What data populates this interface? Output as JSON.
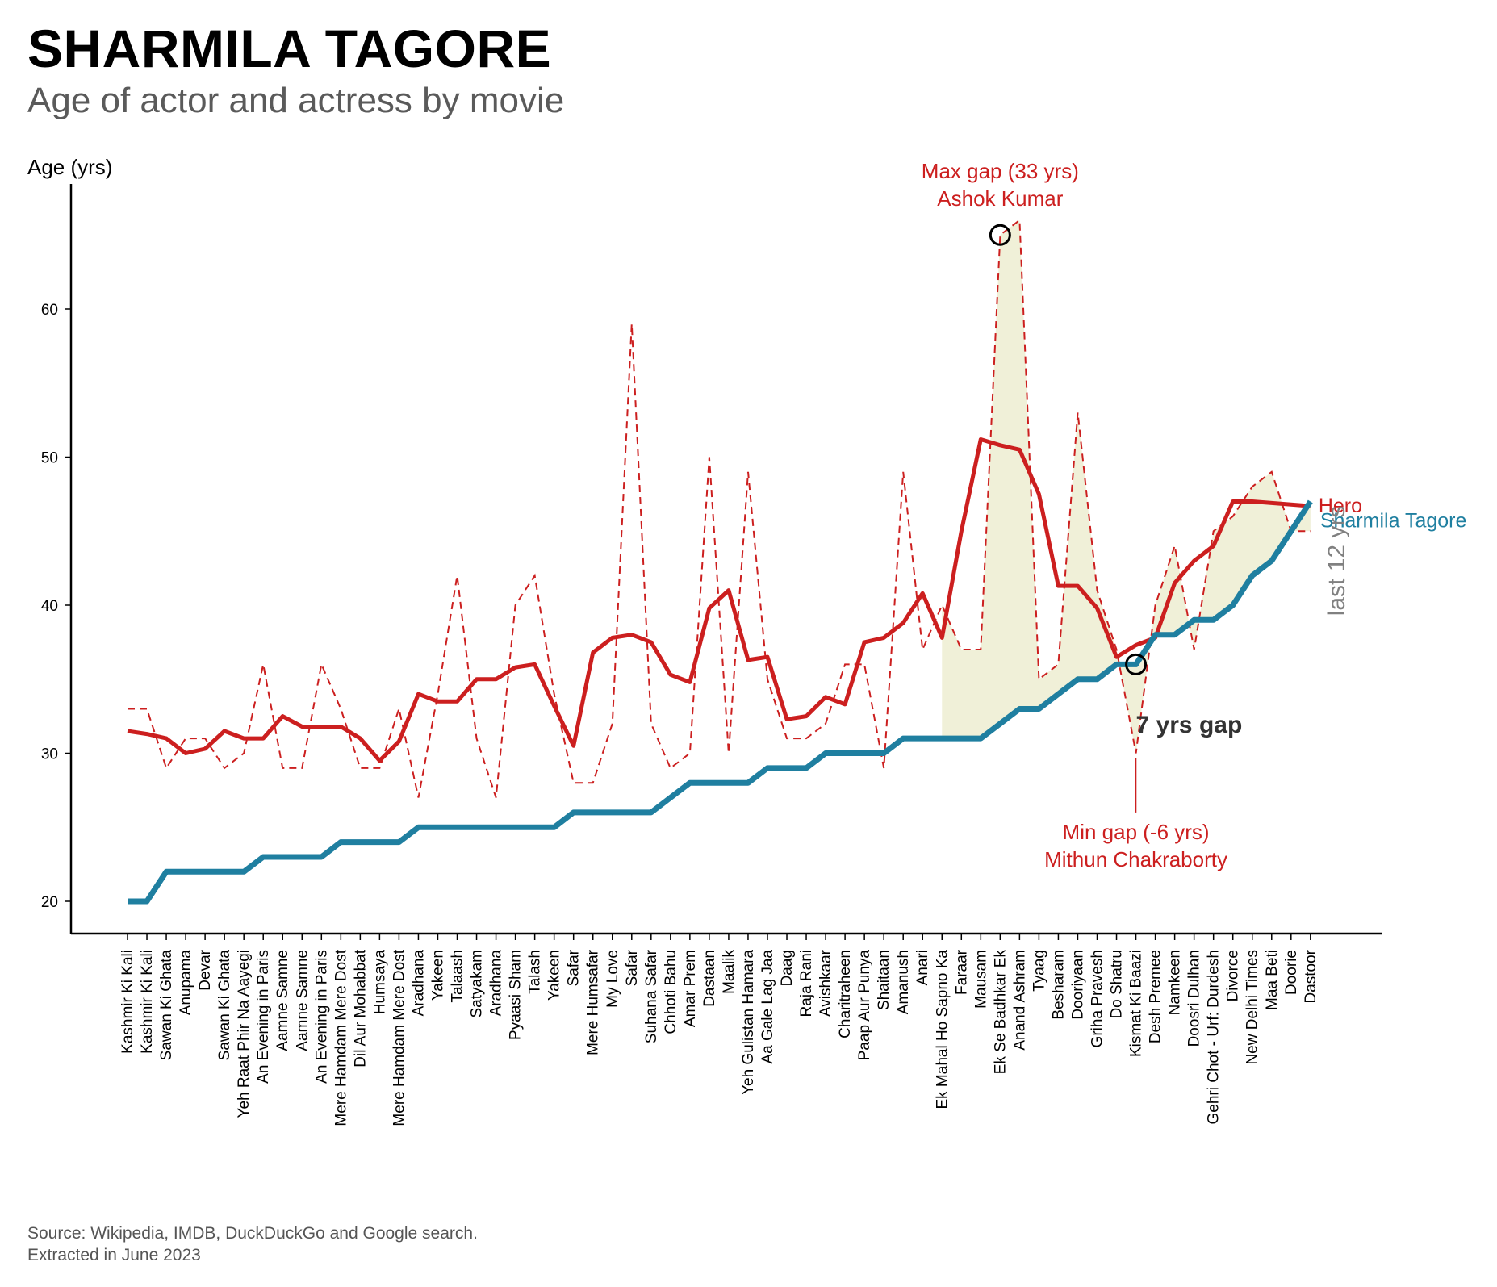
{
  "title": "SHARMILA TAGORE",
  "subtitle": "Age of actor and actress by movie",
  "source": [
    "Source: Wikipedia, IMDB, DuckDuckGo and Google search.",
    "Extracted in June 2023"
  ],
  "colors": {
    "hero": "#cc1f1f",
    "actress": "#1f7fa0",
    "shade": "#efefd6",
    "annotation": "#333333",
    "muted": "#808080"
  },
  "chart_data": {
    "type": "line",
    "title": "SHARMILA TAGORE",
    "subtitle": "Age of actor and actress by movie",
    "ylabel": "Age (yrs)",
    "ylim": [
      18,
      68
    ],
    "yticks": [
      20,
      30,
      40,
      50,
      60
    ],
    "grid": false,
    "categories": [
      "Kashmir Ki Kali",
      "Kashmir Ki Kali",
      "Sawan Ki Ghata",
      "Anupama",
      "Devar",
      "Sawan Ki Ghata",
      "Yeh Raat Phir Na Aayegi",
      "An Evening in Paris",
      "Aamne Samne",
      "Aamne Samne",
      "An Evening in Paris",
      "Mere Hamdam Mere Dost",
      "Dil Aur Mohabbat",
      "Humsaya",
      "Mere Hamdam Mere Dost",
      "Aradhana",
      "Yakeen",
      "Talaash",
      "Satyakam",
      "Aradhana",
      "Pyaasi Sham",
      "Talash",
      "Yakeen",
      "Safar",
      "Mere Humsafar",
      "My Love",
      "Safar",
      "Suhana Safar",
      "Chhoti Bahu",
      "Amar Prem",
      "Dastaan",
      "Maalik",
      "Yeh Gulistan Hamara",
      "Aa Gale Lag Jaa",
      "Daag",
      "Raja Rani",
      "Avishkaar",
      "Charitraheen",
      "Paap Aur Punya",
      "Shaitaan",
      "Amanush",
      "Anari",
      "Ek Mahal Ho Sapno Ka",
      "Faraar",
      "Mausam",
      "Ek Se Badhkar Ek",
      "Anand Ashram",
      "Tyaag",
      "Besharam",
      "Dooriyaan",
      "Griha Pravesh",
      "Do Shatru",
      "Kismat Ki Baazi",
      "Desh Premee",
      "Namkeen",
      "Doosri Dulhan",
      "Gehri Chot - Urf: Durdesh",
      "Divorce",
      "New Delhi Times",
      "Maa Beti",
      "Doorie",
      "Dastoor"
    ],
    "series": [
      {
        "name": "Hero",
        "style": "dashed",
        "values": [
          33,
          33,
          29,
          31,
          31,
          29,
          30,
          36,
          29,
          29,
          36,
          33,
          29,
          29,
          33,
          27,
          34,
          42,
          31,
          27,
          40,
          42,
          34,
          28,
          28,
          32,
          59,
          32,
          29,
          30,
          50,
          30,
          49,
          35,
          31,
          31,
          32,
          36,
          36,
          29,
          49,
          37,
          40,
          37,
          37,
          65,
          66,
          35,
          36,
          53,
          41,
          37,
          30,
          40,
          44,
          37,
          45,
          46,
          48,
          49,
          45,
          45
        ]
      },
      {
        "name": "Hero (rolling average)",
        "style": "solid",
        "values": [
          31.5,
          31.3,
          31.0,
          30.0,
          30.3,
          31.5,
          31.0,
          31.0,
          32.5,
          31.8,
          31.8,
          31.8,
          31.0,
          29.5,
          30.8,
          34.0,
          33.5,
          33.5,
          35.0,
          35.0,
          35.8,
          36.0,
          33.2,
          30.5,
          36.8,
          37.8,
          38.0,
          37.5,
          35.3,
          34.8,
          39.8,
          41.0,
          36.3,
          36.5,
          32.3,
          32.5,
          33.8,
          33.3,
          37.5,
          37.8,
          38.8,
          40.8,
          37.8,
          45.0,
          51.2,
          50.8,
          50.5,
          47.5,
          41.3,
          41.3,
          39.8,
          36.5,
          37.3,
          37.8,
          41.5,
          43.0,
          44.0,
          47.0,
          47.0,
          46.9,
          46.8,
          46.7
        ]
      },
      {
        "name": "Sharmila Tagore",
        "style": "solid",
        "values": [
          20,
          20,
          22,
          22,
          22,
          22,
          22,
          23,
          23,
          23,
          23,
          24,
          24,
          24,
          24,
          25,
          25,
          25,
          25,
          25,
          25,
          25,
          25,
          26,
          26,
          26,
          26,
          26,
          27,
          28,
          28,
          28,
          28,
          29,
          29,
          29,
          30,
          30,
          30,
          30,
          31,
          31,
          31,
          31,
          31,
          32,
          33,
          33,
          34,
          35,
          35,
          36,
          36,
          38,
          38,
          39,
          39,
          40,
          42,
          43,
          45,
          47
        ]
      }
    ],
    "labels": {
      "hero": "Hero",
      "actress": "Sharmila Tagore",
      "last_years": "last 12 yrs"
    },
    "annotations": {
      "max_gap": {
        "line1": "Max gap (33 yrs)",
        "line2": "Ashok Kumar",
        "category": "Ek Se Badhkar Ek",
        "age": 65
      },
      "min_gap": {
        "line1": "Min gap (-6 yrs)",
        "line2": "Mithun Chakraborty",
        "category": "Kismat Ki Baazi",
        "age": 36
      },
      "gap_text": "7 yrs gap"
    }
  }
}
